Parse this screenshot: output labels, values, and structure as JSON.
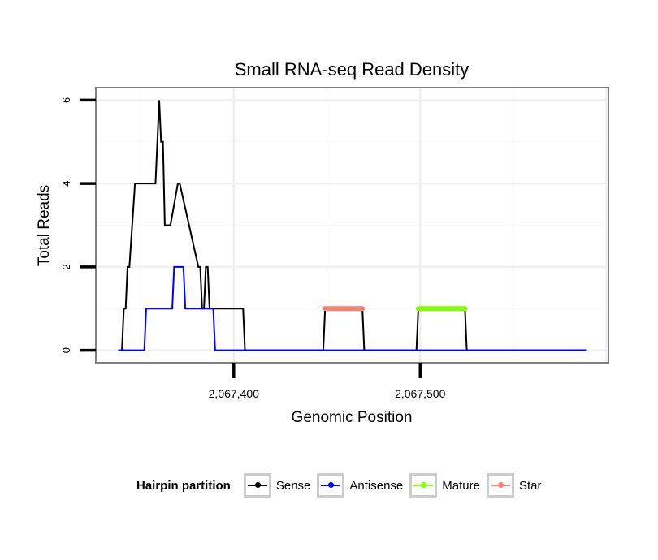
{
  "chart_data": {
    "type": "line",
    "title": "Small RNA-seq Read Density",
    "xlabel": "Genomic Position",
    "ylabel": "Total Reads",
    "xlim": [
      2067326,
      2067601
    ],
    "ylim": [
      -0.3,
      6.3
    ],
    "x_ticks": [
      2067400,
      2067500
    ],
    "x_tick_labels": [
      "2,067,400",
      "2,067,500"
    ],
    "y_ticks": [
      0,
      2,
      4,
      6
    ],
    "y_tick_labels": [
      "0",
      "2",
      "4",
      "6"
    ],
    "grid": true,
    "legend_position": "bottom",
    "legend_title": "Hairpin partition",
    "series": [
      {
        "name": "Sense",
        "color": "#000000",
        "x": [
          2067338,
          2067340,
          2067341,
          2067342,
          2067343,
          2067344,
          2067347,
          2067358,
          2067359,
          2067360,
          2067361,
          2067362,
          2067363,
          2067366,
          2067370,
          2067371,
          2067381,
          2067382,
          2067383,
          2067384,
          2067385,
          2067386,
          2067387,
          2067388,
          2067390,
          2067405,
          2067406,
          2067448,
          2067449,
          2067469,
          2067470,
          2067498,
          2067499,
          2067524,
          2067525,
          2067589
        ],
        "y": [
          0,
          0,
          1,
          1,
          2,
          2,
          4,
          4,
          5,
          6,
          5,
          5,
          3,
          3,
          4,
          4,
          2,
          2,
          1,
          1,
          2,
          2,
          1,
          1,
          1,
          1,
          0,
          0,
          1,
          1,
          0,
          0,
          1,
          1,
          0,
          0
        ]
      },
      {
        "name": "Antisense",
        "color": "#0000ff",
        "x": [
          2067338,
          2067352,
          2067353,
          2067367,
          2067368,
          2067373,
          2067374,
          2067389,
          2067390,
          2067449,
          2067450,
          2067469,
          2067470,
          2067525,
          2067526,
          2067589
        ],
        "y": [
          0,
          0,
          1,
          1,
          2,
          2,
          1,
          1,
          0,
          0,
          0,
          0,
          0,
          0,
          0,
          0
        ]
      },
      {
        "name": "Mature",
        "color": "#7fff00",
        "x": [
          2067499,
          2067524
        ],
        "y": [
          1,
          1
        ]
      },
      {
        "name": "Star",
        "color": "#fa8072",
        "x": [
          2067449,
          2067469
        ],
        "y": [
          1,
          1
        ]
      }
    ]
  }
}
